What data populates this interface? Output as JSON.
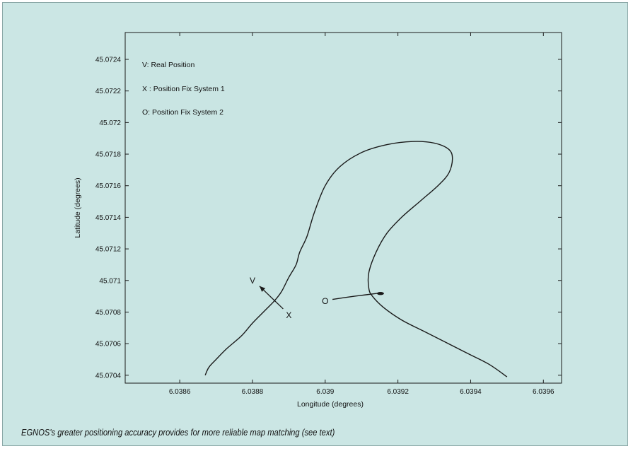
{
  "caption": "EGNOS's greater positioning accuracy provides for more reliable map matching (see text)",
  "colors": {
    "background": "#cbe6e4",
    "plot_area": "#c9e5e3",
    "line": "#1a1a1a"
  },
  "chart_data": {
    "type": "line",
    "title": "",
    "xlabel": "Longitude (degrees)",
    "ylabel": "Latitude (degrees)",
    "xlim": [
      6.03845,
      6.03965
    ],
    "ylim": [
      45.07035,
      45.07257
    ],
    "xticks": [
      6.0386,
      6.0388,
      6.039,
      6.0392,
      6.0394,
      6.0396
    ],
    "xtick_labels": [
      "6.0386",
      "6.0388",
      "6.039",
      "6.0392",
      "6.0394",
      "6.0396"
    ],
    "yticks": [
      45.0704,
      45.0706,
      45.0708,
      45.071,
      45.0712,
      45.0714,
      45.0716,
      45.0718,
      45.072,
      45.0722,
      45.0724
    ],
    "ytick_labels": [
      "45.0704",
      "45.0706",
      "45.0708",
      "45.071",
      "45.0712",
      "45.0714",
      "45.0716",
      "45.0718",
      "45.072",
      "45.0722",
      "45.0724"
    ],
    "legend": {
      "position": "top-left",
      "entries": [
        "V: Real Position",
        "X : Position Fix System 1",
        "O: Position Fix System 2"
      ]
    },
    "series": [
      {
        "x": [
          6.03867,
          6.03868,
          6.0387,
          6.03873,
          6.03877,
          6.0388,
          6.03883,
          6.03886,
          6.03888,
          6.0389,
          6.03892,
          6.03893,
          6.03895,
          6.03897,
          6.039,
          6.03904,
          6.0391,
          6.03917,
          6.03924,
          6.0393,
          6.03934,
          6.03935,
          6.03934,
          6.03931,
          6.03926,
          6.03921,
          6.03917,
          6.03914,
          6.03912,
          6.03912,
          6.03913,
          6.03916,
          6.03921,
          6.03927,
          6.03933,
          6.03939,
          6.03945,
          6.0395
        ],
        "y": [
          45.0704,
          45.07045,
          45.0705,
          45.07057,
          45.07065,
          45.07073,
          45.0708,
          45.07087,
          45.07093,
          45.07102,
          45.0711,
          45.07118,
          45.07128,
          45.07143,
          45.0716,
          45.07172,
          45.07181,
          45.07186,
          45.07188,
          45.07187,
          45.07183,
          45.07177,
          45.07168,
          45.0716,
          45.0715,
          45.0714,
          45.0713,
          45.07118,
          45.07105,
          45.07095,
          45.0709,
          45.07083,
          45.07075,
          45.07068,
          45.07061,
          45.07054,
          45.07047,
          45.07039
        ]
      },
      {
        "x": [
          6.03902,
          6.03908,
          6.03915
        ],
        "y": [
          45.07088,
          45.0709,
          45.07092
        ]
      }
    ],
    "annotations": [
      {
        "text": "V",
        "x": 6.0388,
        "y": 45.071
      },
      {
        "text": "X",
        "x": 6.0389,
        "y": 45.07078
      },
      {
        "text": "O",
        "x": 6.039,
        "y": 45.07087
      }
    ]
  }
}
